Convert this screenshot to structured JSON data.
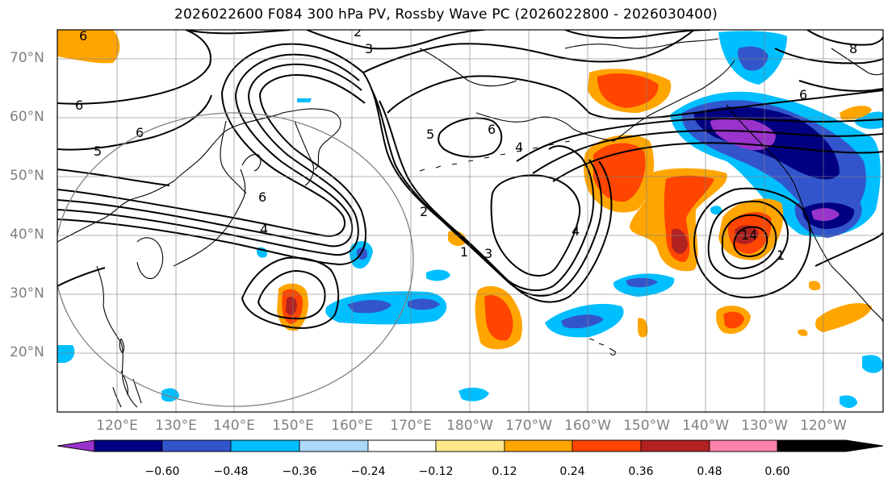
{
  "title": "2026022600 F084 300 hPa PV, Rossby Wave PC (2026022800 - 2026030400)",
  "map": {
    "region": "North Pacific",
    "lat_labels": [
      "70°N",
      "60°N",
      "50°N",
      "40°N",
      "30°N",
      "20°N"
    ],
    "lon_labels": [
      "120°E",
      "130°E",
      "140°E",
      "150°E",
      "160°E",
      "170°E",
      "180°W",
      "170°W",
      "160°W",
      "150°W",
      "140°W",
      "130°W",
      "120°W"
    ],
    "contour_labels": [
      "6",
      "2",
      "3",
      "8",
      "6",
      "6",
      "6",
      "5",
      "5",
      "6",
      "6",
      "4",
      "4",
      "2",
      "3",
      "1",
      "4",
      "1",
      "1",
      "4"
    ]
  },
  "colorbar": {
    "ticks": [
      "−0.60",
      "−0.48",
      "−0.36",
      "−0.24",
      "−0.12",
      "0.12",
      "0.24",
      "0.36",
      "0.48",
      "0.60"
    ],
    "colors": [
      "#9933cc",
      "#000080",
      "#3355cc",
      "#00bfff",
      "#add8f8",
      "#ffffff",
      "#ffe88a",
      "#ffa500",
      "#ff4500",
      "#b22222",
      "#ff82ab"
    ]
  }
}
